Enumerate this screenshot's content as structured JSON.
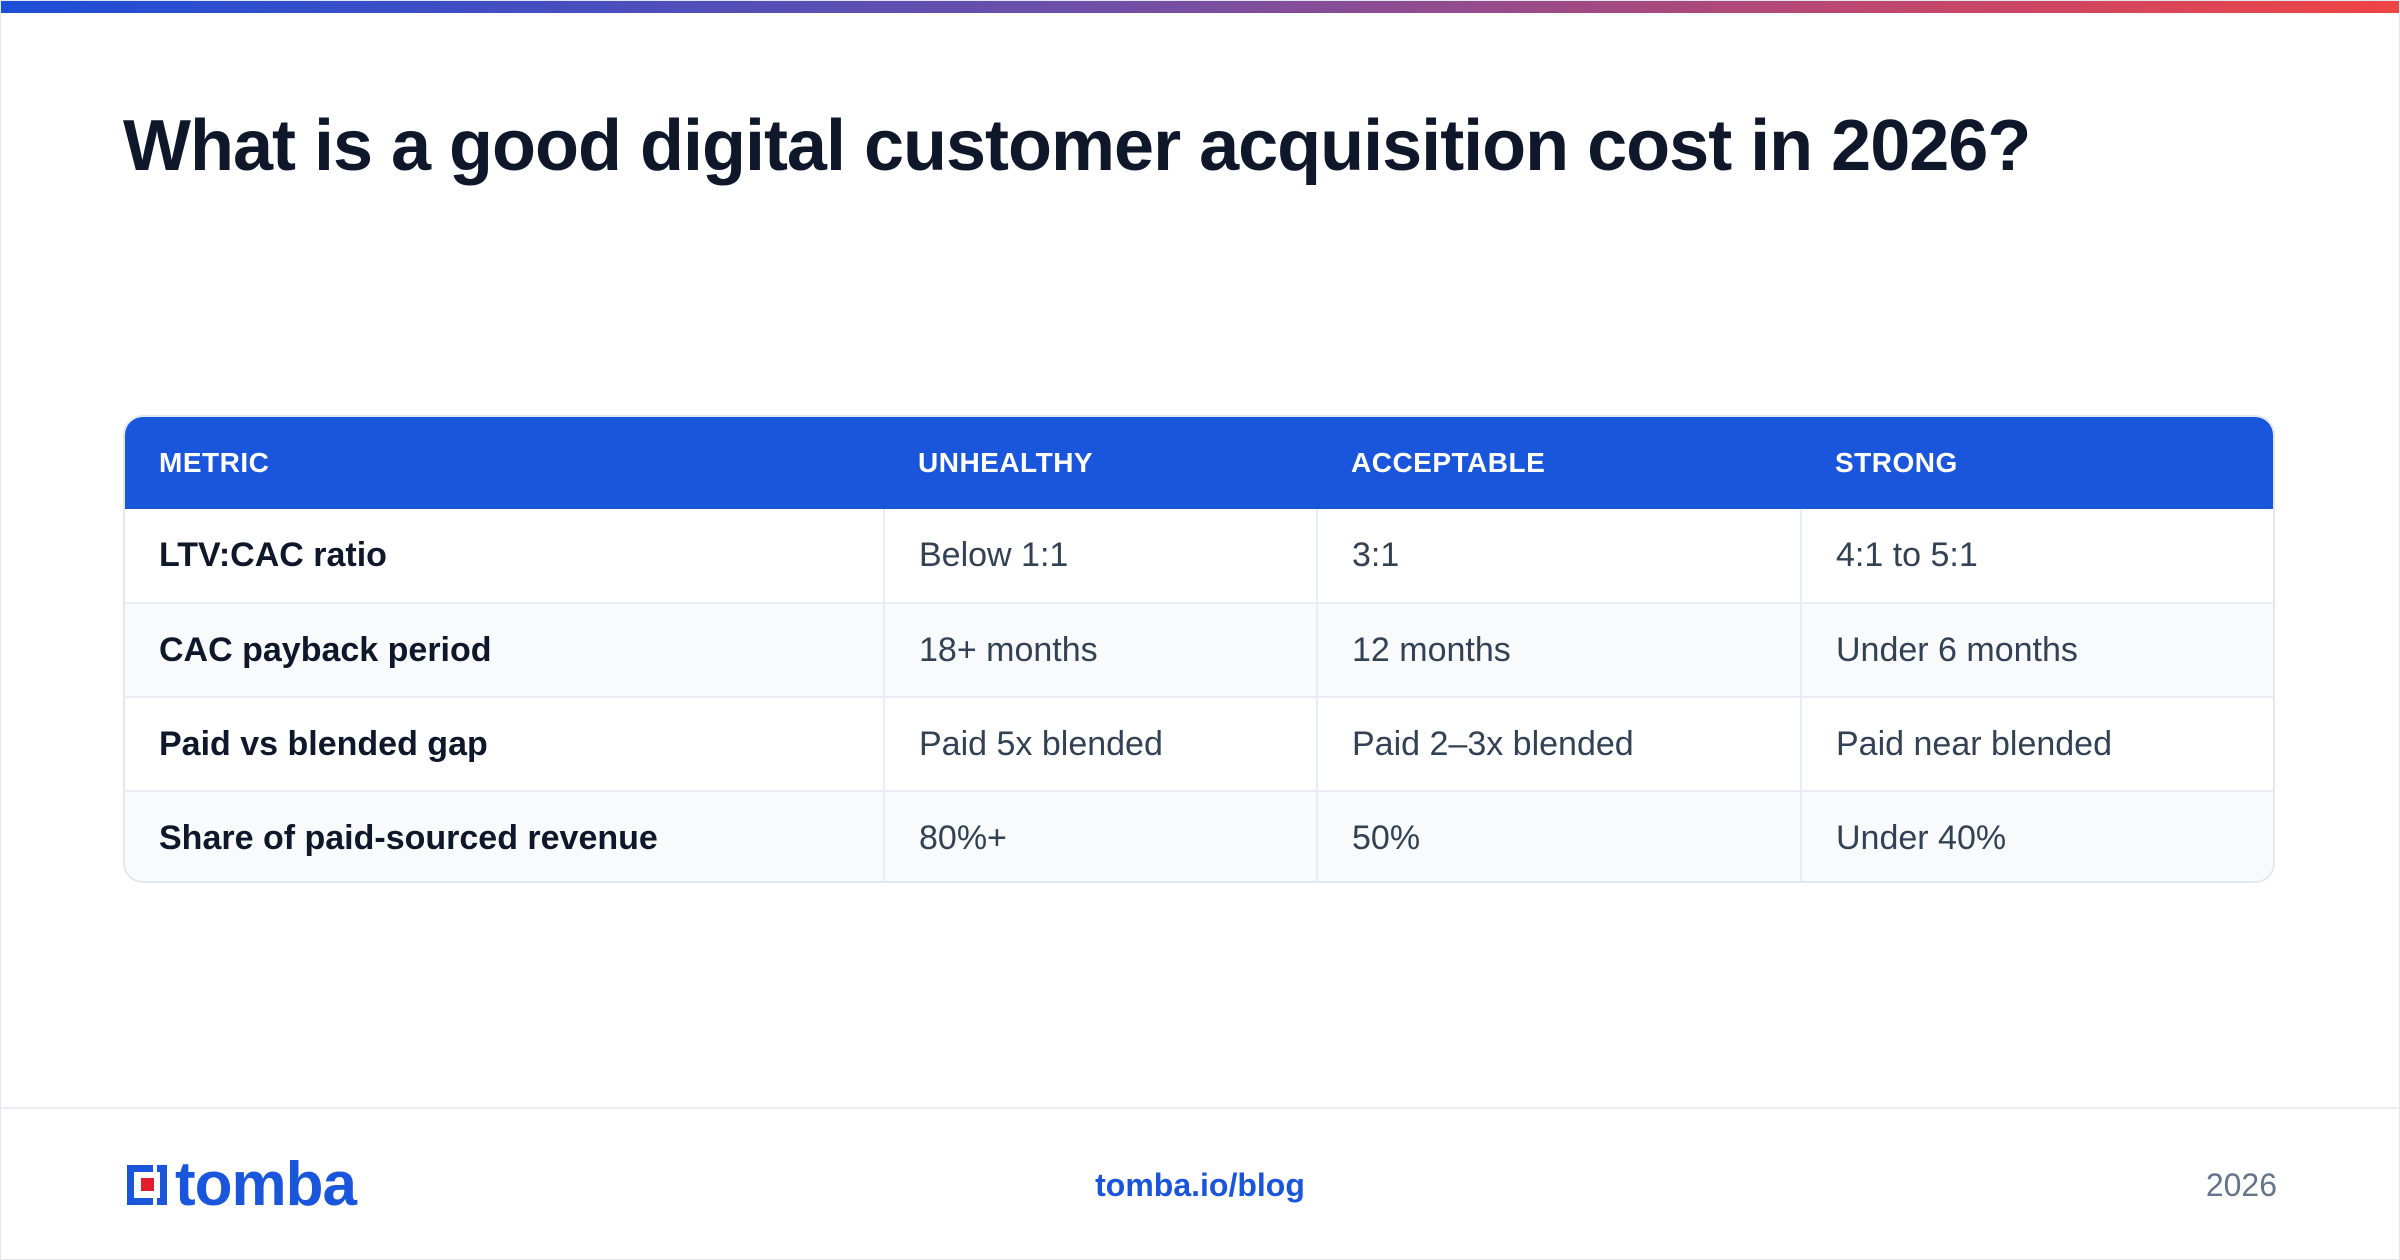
{
  "page": {
    "title": "What is a good digital customer acquisition cost in 2026?"
  },
  "table": {
    "headers": [
      "METRIC",
      "UNHEALTHY",
      "ACCEPTABLE",
      "STRONG"
    ],
    "rows": [
      [
        "LTV:CAC ratio",
        "Below 1:1",
        "3:1",
        "4:1 to 5:1"
      ],
      [
        "CAC payback period",
        "18+ months",
        "12 months",
        "Under 6 months"
      ],
      [
        "Paid vs blended gap",
        "Paid 5x blended",
        "Paid 2–3x blended",
        "Paid near blended"
      ],
      [
        "Share of paid-sourced revenue",
        "80%+",
        "50%",
        "Under 40%"
      ]
    ]
  },
  "footer": {
    "logo_text": "tomba",
    "link": "tomba.io/blog",
    "year": "2026"
  },
  "colors": {
    "accent": "#1a56db",
    "logo_red": "#e11d2e",
    "heading": "#0f172a",
    "muted": "#64748b"
  }
}
